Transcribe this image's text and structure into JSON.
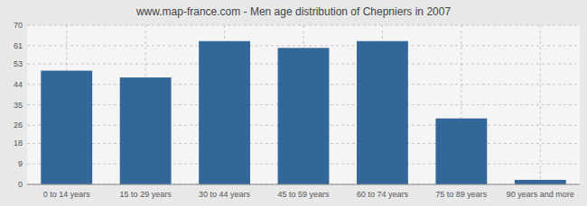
{
  "chart_data": {
    "type": "bar",
    "title": "www.map-france.com - Men age distribution of Chepniers in 2007",
    "categories": [
      "0 to 14 years",
      "15 to 29 years",
      "30 to 44 years",
      "45 to 59 years",
      "60 to 74 years",
      "75 to 89 years",
      "90 years and more"
    ],
    "values": [
      50,
      47,
      63,
      60,
      63,
      29,
      2
    ],
    "color": "#336699",
    "ylim": [
      0,
      70
    ],
    "yticks": [
      0,
      9,
      18,
      26,
      35,
      44,
      53,
      61,
      70
    ],
    "grid": true
  }
}
